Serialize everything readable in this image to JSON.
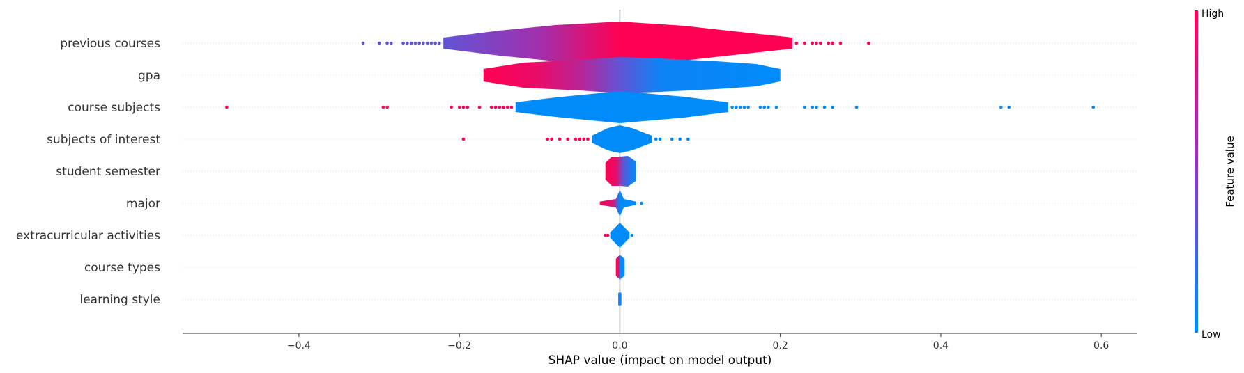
{
  "chart_data": {
    "type": "violin",
    "xlabel": "SHAP value (impact on model output)",
    "xlim": [
      -0.545,
      0.645
    ],
    "xticks": [
      -0.4,
      -0.2,
      0.0,
      0.2,
      0.4,
      0.6
    ],
    "xtick_labels": [
      "−0.4",
      "−0.2",
      "0.0",
      "0.2",
      "0.4",
      "0.6"
    ],
    "colorbar": {
      "title": "Feature value",
      "high_label": "High",
      "low_label": "Low",
      "high_color": "#ff0052",
      "low_color": "#008bfb"
    },
    "grid": "horizontal-dotted",
    "features": [
      {
        "name": "previous courses",
        "profile": [
          [
            -0.22,
            0.4
          ],
          [
            -0.15,
            0.9
          ],
          [
            -0.08,
            1.3
          ],
          [
            0.0,
            1.55
          ],
          [
            0.08,
            1.25
          ],
          [
            0.15,
            0.8
          ],
          [
            0.215,
            0.4
          ]
        ],
        "color_stops": [
          [
            -0.22,
            0.35
          ],
          [
            -0.1,
            0.6
          ],
          [
            0.0,
            1.0
          ],
          [
            0.215,
            1.0
          ]
        ],
        "outliers_low": [
          -0.32,
          -0.3,
          -0.29,
          -0.285,
          -0.27,
          -0.265,
          -0.26,
          -0.255,
          -0.25,
          -0.245,
          -0.24,
          -0.235,
          -0.23,
          -0.225
        ],
        "outliers_high": [
          0.22,
          0.23,
          0.24,
          0.245,
          0.25,
          0.26,
          0.265,
          0.275,
          0.31
        ]
      },
      {
        "name": "gpa",
        "profile": [
          [
            -0.17,
            0.45
          ],
          [
            -0.12,
            0.9
          ],
          [
            -0.05,
            1.1
          ],
          [
            0.0,
            1.3
          ],
          [
            0.05,
            1.2
          ],
          [
            0.12,
            1.0
          ],
          [
            0.17,
            0.8
          ],
          [
            0.2,
            0.45
          ]
        ],
        "color_stops": [
          [
            -0.17,
            1.0
          ],
          [
            -0.1,
            0.9
          ],
          [
            -0.05,
            0.7
          ],
          [
            0.0,
            0.35
          ],
          [
            0.05,
            0.05
          ],
          [
            0.2,
            0.0
          ]
        ],
        "outliers_low": [],
        "outliers_high": []
      },
      {
        "name": "course subjects",
        "profile": [
          [
            -0.13,
            0.35
          ],
          [
            -0.08,
            0.7
          ],
          [
            0.0,
            1.15
          ],
          [
            0.08,
            0.75
          ],
          [
            0.135,
            0.35
          ]
        ],
        "color_stops": [
          [
            -0.13,
            0.0
          ],
          [
            0.135,
            0.0
          ]
        ],
        "outliers_low": [
          -0.49,
          -0.295,
          -0.29,
          -0.21,
          -0.2,
          -0.195,
          -0.19,
          -0.175,
          -0.16,
          -0.155,
          -0.15,
          -0.145,
          -0.14,
          -0.135
        ],
        "outliers_high": [
          0.14,
          0.145,
          0.15,
          0.155,
          0.16,
          0.175,
          0.18,
          0.185,
          0.195,
          0.23,
          0.24,
          0.245,
          0.255,
          0.265,
          0.295,
          0.475,
          0.485,
          0.59
        ],
        "outliers_low_color": 1.0,
        "outliers_high_color": 0.0
      },
      {
        "name": "subjects of interest",
        "profile": [
          [
            -0.035,
            0.25
          ],
          [
            -0.015,
            0.8
          ],
          [
            0.0,
            1.0
          ],
          [
            0.015,
            0.8
          ],
          [
            0.04,
            0.25
          ]
        ],
        "color_stops": [
          [
            -0.035,
            0.0
          ],
          [
            0.04,
            0.0
          ]
        ],
        "outliers_low": [
          -0.195,
          -0.09,
          -0.085,
          -0.075,
          -0.065,
          -0.055,
          -0.05,
          -0.045,
          -0.04
        ],
        "outliers_high": [
          0.045,
          0.05,
          0.065,
          0.075,
          0.085
        ],
        "outliers_low_color": 1.0,
        "outliers_high_color": 0.0
      },
      {
        "name": "student semester",
        "profile": [
          [
            -0.018,
            0.6
          ],
          [
            -0.01,
            1.05
          ],
          [
            0.0,
            1.05
          ],
          [
            0.01,
            1.1
          ],
          [
            0.02,
            0.7
          ]
        ],
        "color_stops": [
          [
            -0.018,
            1.0
          ],
          [
            -0.005,
            0.9
          ],
          [
            0.005,
            0.3
          ],
          [
            0.02,
            0.0
          ]
        ],
        "outliers_low": [],
        "outliers_high": []
      },
      {
        "name": "major",
        "profile": [
          [
            -0.025,
            0.12
          ],
          [
            -0.005,
            0.3
          ],
          [
            0.0,
            0.95
          ],
          [
            0.005,
            0.3
          ],
          [
            0.02,
            0.12
          ]
        ],
        "color_stops": [
          [
            -0.025,
            1.0
          ],
          [
            -0.008,
            0.8
          ],
          [
            0.0,
            0.0
          ],
          [
            0.02,
            0.0
          ]
        ],
        "outliers_low": [],
        "outliers_high": [
          0.027
        ]
      },
      {
        "name": "extracurricular activities",
        "profile": [
          [
            -0.012,
            0.2
          ],
          [
            0.0,
            0.9
          ],
          [
            0.012,
            0.2
          ]
        ],
        "color_stops": [
          [
            -0.012,
            0.0
          ],
          [
            0.012,
            0.0
          ]
        ],
        "outliers_low": [
          -0.018,
          -0.015
        ],
        "outliers_high": [
          0.015
        ],
        "outliers_low_color": 1.0,
        "outliers_high_color": 0.0
      },
      {
        "name": "course types",
        "profile": [
          [
            -0.005,
            0.6
          ],
          [
            0.0,
            0.9
          ],
          [
            0.006,
            0.6
          ]
        ],
        "color_stops": [
          [
            -0.005,
            1.0
          ],
          [
            -0.002,
            1.0
          ],
          [
            0.0,
            0.0
          ],
          [
            0.006,
            0.0
          ]
        ],
        "outliers_low": [],
        "outliers_high": []
      },
      {
        "name": "learning style",
        "profile": [
          [
            -0.002,
            0.45
          ],
          [
            0.0,
            0.5
          ],
          [
            0.002,
            0.45
          ]
        ],
        "color_stops": [
          [
            -0.002,
            0.1
          ],
          [
            0.002,
            0.0
          ]
        ],
        "outliers_low": [],
        "outliers_high": []
      }
    ]
  }
}
